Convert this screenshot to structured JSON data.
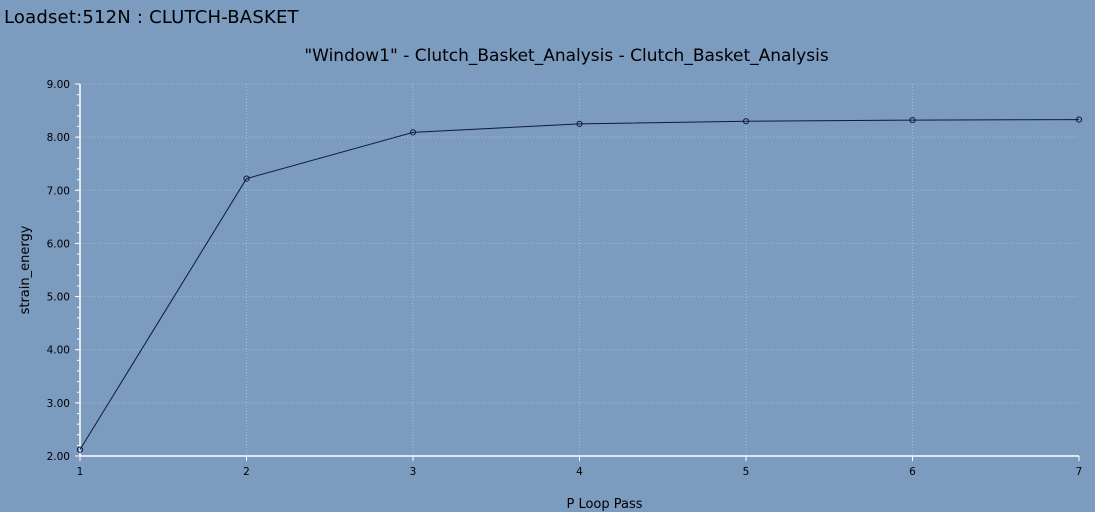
{
  "window": {
    "loadset_title": "Loadset:512N :  CLUTCH-BASKET"
  },
  "chart_data": {
    "type": "line",
    "title": "\"Window1\" - Clutch_Basket_Analysis - Clutch_Basket_Analysis",
    "xlabel": "P Loop Pass",
    "ylabel": "strain_energy",
    "x": [
      1,
      2,
      3,
      4,
      5,
      6,
      7
    ],
    "x_tick_labels": [
      "1",
      "2",
      "3",
      "4",
      "5",
      "6",
      "7"
    ],
    "y_tick_labels": [
      "9.00",
      "8.00",
      "7.00",
      "6.00",
      "5.00",
      "4.00",
      "3.00",
      "2.00"
    ],
    "xlim": [
      1,
      7
    ],
    "ylim": [
      2.0,
      9.0
    ],
    "grid": true,
    "series": [
      {
        "values": [
          2.12,
          7.22,
          8.09,
          8.25,
          8.3,
          8.32,
          8.33
        ]
      }
    ],
    "colors": {
      "background": "#7b9bbf",
      "line": "#0f1a3a",
      "grid": "#a8bdd6",
      "axis": "#ffffff"
    },
    "markers": "circle"
  }
}
